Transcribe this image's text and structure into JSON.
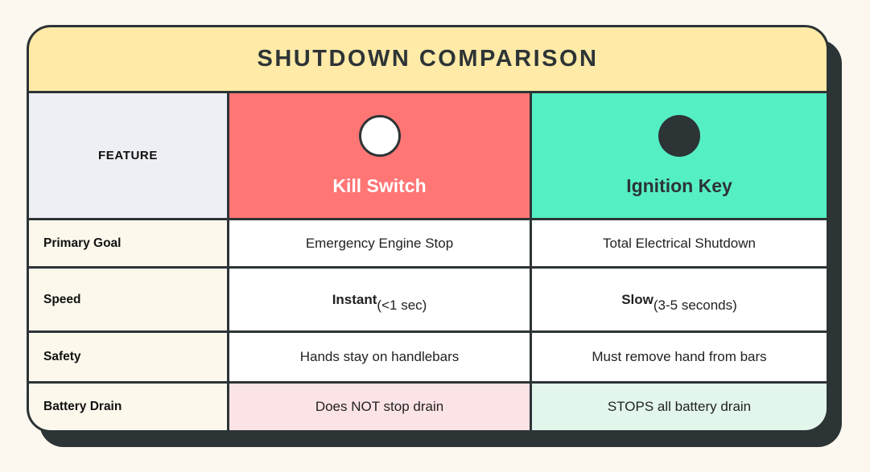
{
  "title": "SHUTDOWN COMPARISON",
  "header": {
    "feature": "FEATURE",
    "kill_switch": "Kill Switch",
    "ignition_key": "Ignition Key"
  },
  "rows": {
    "primary_goal": {
      "label": "Primary Goal",
      "kill": "Emergency Engine Stop",
      "ignition": "Total Electrical Shutdown"
    },
    "speed": {
      "label": "Speed",
      "kill_main": "Instant",
      "kill_sub": "(<1 sec)",
      "ignition_main": "Slow",
      "ignition_sub": "(3-5 seconds)"
    },
    "safety": {
      "label": "Safety",
      "kill": "Hands stay on handlebars",
      "ignition": "Must remove hand from bars"
    },
    "battery_drain": {
      "label": "Battery Drain",
      "kill": "Does NOT stop drain",
      "ignition": "STOPS all battery drain"
    }
  },
  "colors": {
    "page_background": "#FDF8EF",
    "title_bar": "#FFEAA7",
    "kill_switch_column": "#FF7675",
    "ignition_key_column": "#55EFC4",
    "feature_header_cell": "#EEEFF5",
    "row_label_cell": "#FCF8EC",
    "battery_kill_cell": "#FBE3E6",
    "battery_ignition_cell": "#E2F6EC",
    "border_and_shadow": "#2D3436",
    "kill_label_text": "#FFFFFF",
    "ignition_label_text": "#2D3436"
  },
  "icons": {
    "kill_switch": "white-circle",
    "ignition_key": "dark-circle"
  },
  "chart_data": {
    "type": "table",
    "title": "SHUTDOWN COMPARISON",
    "columns": [
      "FEATURE",
      "Kill Switch",
      "Ignition Key"
    ],
    "rows": [
      [
        "Primary Goal",
        "Emergency Engine Stop",
        "Total Electrical Shutdown"
      ],
      [
        "Speed",
        "Instant (<1 sec)",
        "Slow (3-5 seconds)"
      ],
      [
        "Safety",
        "Hands stay on handlebars",
        "Must remove hand from bars"
      ],
      [
        "Battery Drain",
        "Does NOT stop drain",
        "STOPS all battery drain"
      ]
    ]
  }
}
